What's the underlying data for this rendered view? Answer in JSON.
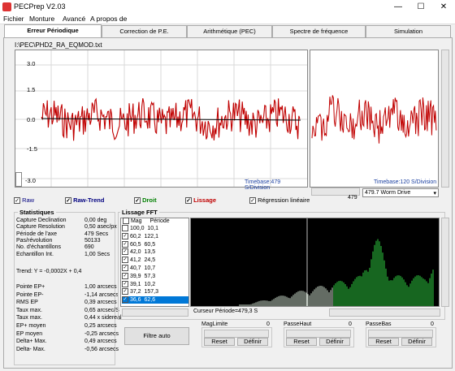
{
  "window": {
    "title": "PECPrep V2.03",
    "minimize": "—",
    "maximize": "☐",
    "close": "✕"
  },
  "menu": [
    "Fichier",
    "Monture",
    "Avancé",
    "A propos de"
  ],
  "tabs": [
    "Erreur Périodique",
    "Correction de P.E.",
    "Arithmétique (PEC)",
    "Spectre de fréquence",
    "Simulation"
  ],
  "file_path": "I:\\PEC\\PHD2_RA_EQMOD.txt",
  "main_chart": {
    "y_ticks": [
      "3.0",
      "1.5",
      "0.0",
      "-1.5",
      "-3.0"
    ],
    "timebase_left": "Timebase:479 S/Division",
    "timebase_right": "Timebase:120 S/Division",
    "scroll_value": "479",
    "dropdown": "479.7 Worm Drive"
  },
  "legend": [
    {
      "label": "Raw",
      "checked": true,
      "color": "#000080"
    },
    {
      "label": "Raw-Trend",
      "checked": true,
      "color": "#000080"
    },
    {
      "label": "Droit",
      "checked": true,
      "color": "#008000"
    },
    {
      "label": "Lissage",
      "checked": true,
      "color": "#c00000"
    },
    {
      "label": "Régression linéaire",
      "checked": true,
      "color": "#000000"
    }
  ],
  "stats": {
    "title": "Statistiques",
    "rows": [
      {
        "k": "Capture Declination",
        "v": "0,00 deg"
      },
      {
        "k": "Capture Resolution",
        "v": "0,50 asec/px"
      },
      {
        "k": "Période de l'axe",
        "v": "479 Secs"
      },
      {
        "k": "Pas/révolution",
        "v": "50133"
      },
      {
        "k": "No. d'échantillons",
        "v": "690"
      },
      {
        "k": "Echantillon Int.",
        "v": "1,00 Secs"
      }
    ],
    "trend": "Trend: Y = -0,0002X + 0,4",
    "rows2": [
      {
        "k": "Pointe EP+",
        "v": "1,00 arcsecs"
      },
      {
        "k": "Pointe EP-",
        "v": "-1,14 arcsecs"
      },
      {
        "k": "RMS EP",
        "v": "0,39 arcsecs"
      },
      {
        "k": "Taux max.",
        "v": "0,65 arcsec/S"
      },
      {
        "k": "Taux max.",
        "v": "0,44 x sidereal"
      },
      {
        "k": "EP+ moyen",
        "v": "0,25 arcsecs"
      },
      {
        "k": "EP moyen",
        "v": "-0,25 arcsecs"
      },
      {
        "k": "Delta+ Max.",
        "v": "0,49 arcsecs"
      },
      {
        "k": "Delta- Max.",
        "v": "-0,56 arcsecs"
      }
    ]
  },
  "lissage": {
    "title": "Lissage FFT",
    "col_mag": "Mag",
    "col_period": "Période",
    "rows": [
      {
        "mag": "100,0",
        "period": "10,1",
        "checked": false
      },
      {
        "mag": "60,2",
        "period": "122,1",
        "checked": true
      },
      {
        "mag": "60,5",
        "period": "60,5",
        "checked": true
      },
      {
        "mag": "42,0",
        "period": "13,5",
        "checked": true
      },
      {
        "mag": "41,2",
        "period": "24,5",
        "checked": true
      },
      {
        "mag": "40,7",
        "period": "10,7",
        "checked": true
      },
      {
        "mag": "39,9",
        "period": "57,3",
        "checked": true
      },
      {
        "mag": "39,1",
        "period": "10,2",
        "checked": true
      },
      {
        "mag": "37,2",
        "period": "157,3",
        "checked": true
      },
      {
        "mag": "36,6",
        "period": "62,6",
        "checked": true
      }
    ],
    "cursor": "Curseur Période=479,3 S",
    "filter_auto": "Filtre auto"
  },
  "filters": [
    {
      "title": "MagLimite",
      "value": "0",
      "reset": "Reset",
      "define": "Définir"
    },
    {
      "title": "PasseHaut",
      "value": "0",
      "reset": "Reset",
      "define": "Définir"
    },
    {
      "title": "PasseBas",
      "value": "0",
      "reset": "Reset",
      "define": "Définir"
    }
  ],
  "chart_data": {
    "type": "line",
    "ylim": [
      -3.0,
      3.0
    ],
    "series_color": "#c00000"
  }
}
